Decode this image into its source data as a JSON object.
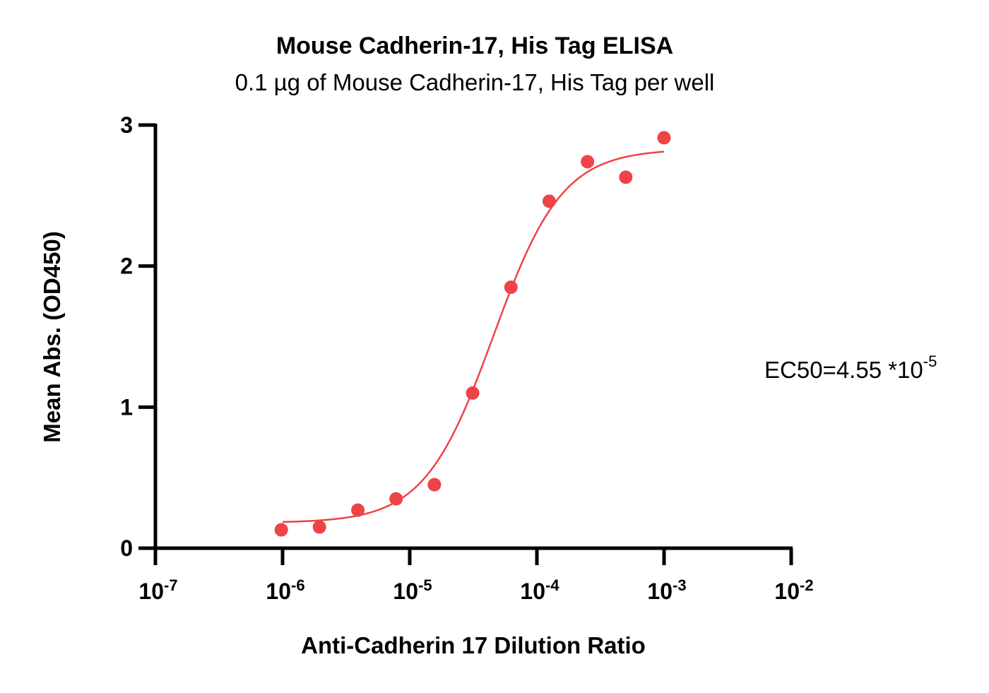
{
  "chart_data": {
    "type": "scatter",
    "title": "Mouse Cadherin-17, His Tag ELISA",
    "subtitle": "0.1 µg of Mouse Cadherin-17, His Tag per well",
    "xlabel": "Anti-Cadherin 17 Dilution Ratio",
    "ylabel": "Mean Abs. (OD450)",
    "x_scale": "log10",
    "xlim": [
      1e-07,
      0.01
    ],
    "ylim": [
      0,
      3
    ],
    "x_ticks": [
      {
        "base": "10",
        "exp": "-7",
        "value": 1e-07
      },
      {
        "base": "10",
        "exp": "-6",
        "value": 1e-06
      },
      {
        "base": "10",
        "exp": "-5",
        "value": 1e-05
      },
      {
        "base": "10",
        "exp": "-4",
        "value": 0.0001
      },
      {
        "base": "10",
        "exp": "-3",
        "value": 0.001
      },
      {
        "base": "10",
        "exp": "-2",
        "value": 0.01
      }
    ],
    "y_ticks": [
      "0",
      "1",
      "2",
      "3"
    ],
    "grid": false,
    "legend": "none",
    "color": "#ee4347",
    "points": [
      {
        "x": 9.77e-07,
        "y": 0.13
      },
      {
        "x": 1.95e-06,
        "y": 0.15
      },
      {
        "x": 3.91e-06,
        "y": 0.27
      },
      {
        "x": 7.81e-06,
        "y": 0.35
      },
      {
        "x": 1.5625e-05,
        "y": 0.45
      },
      {
        "x": 3.125e-05,
        "y": 1.1
      },
      {
        "x": 6.25e-05,
        "y": 1.85
      },
      {
        "x": 0.000125,
        "y": 2.46
      },
      {
        "x": 0.00025,
        "y": 2.74
      },
      {
        "x": 0.0005,
        "y": 2.63
      },
      {
        "x": 0.001,
        "y": 2.91
      }
    ],
    "fit": {
      "bottom": 0.18,
      "top": 2.83,
      "ec50": 4.55e-05,
      "hill": 1.6,
      "x_range": [
        1e-06,
        0.001
      ]
    },
    "annotation": {
      "text": "EC50=4.55 *10",
      "sup": "-5"
    }
  }
}
